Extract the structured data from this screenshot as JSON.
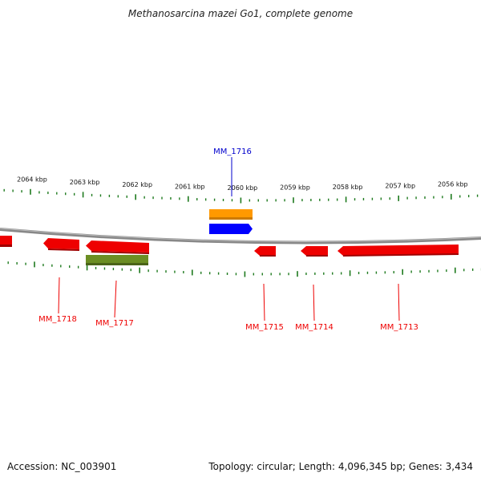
{
  "title": "Methanosarcina mazei Go1, complete genome",
  "footer": {
    "accession": "Accession: NC_003901",
    "summary": "Topology: circular; Length: 4,096,345 bp; Genes: 3,434"
  },
  "colors": {
    "forward": "#0000ff",
    "reverse": "#ff0000",
    "orange": "#ff9900",
    "olive": "#6b8e23",
    "tick": "#1e7a1e",
    "backbone": "#808080"
  },
  "ticks": {
    "major_labels": [
      "2064 kbp",
      "2063 kbp",
      "2062 kbp",
      "2061 kbp",
      "2060 kbp",
      "2059 kbp",
      "2058 kbp",
      "2057 kbp",
      "2056 kbp"
    ]
  },
  "genes": [
    {
      "id": "MM_1716",
      "label": "MM_1716",
      "strand": "forward",
      "color": "blue"
    },
    {
      "id": "MM_1718",
      "label": "MM_1718",
      "strand": "reverse",
      "color": "red"
    },
    {
      "id": "MM_1717",
      "label": "MM_1717",
      "strand": "reverse",
      "color": "red"
    },
    {
      "id": "MM_1715",
      "label": "MM_1715",
      "strand": "reverse",
      "color": "red"
    },
    {
      "id": "MM_1714",
      "label": "MM_1714",
      "strand": "reverse",
      "color": "red"
    },
    {
      "id": "MM_1713",
      "label": "MM_1713",
      "strand": "reverse",
      "color": "red"
    }
  ]
}
